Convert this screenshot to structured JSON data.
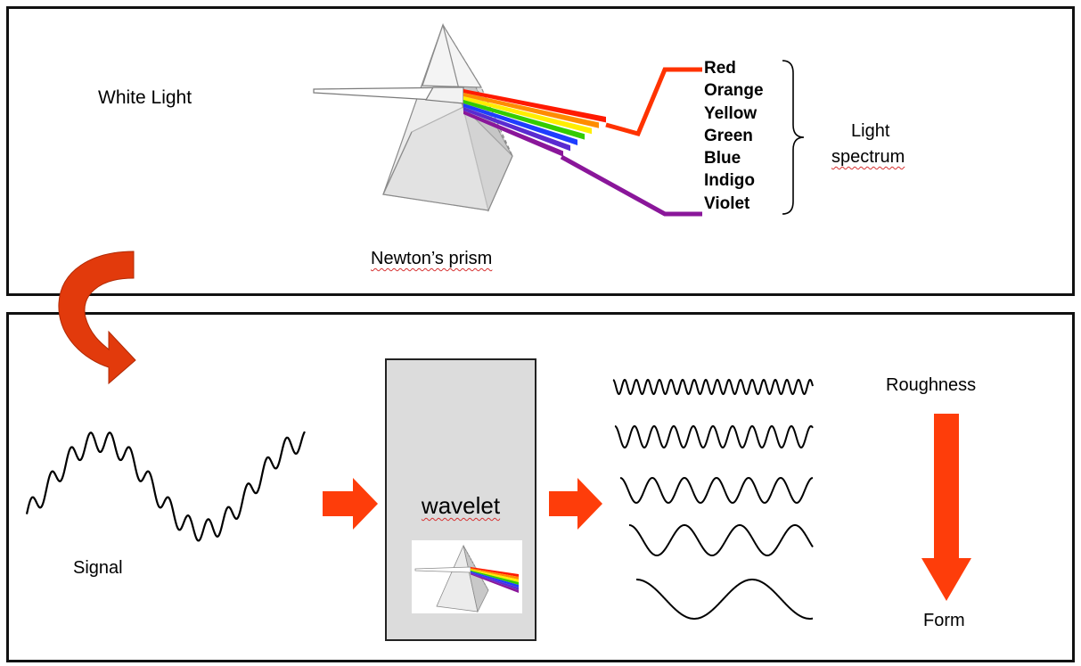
{
  "top": {
    "white_light_label": "White Light",
    "prism_caption": "Newton’s prism",
    "spectrum_colors": [
      "Red",
      "Orange",
      "Yellow",
      "Green",
      "Blue",
      "Indigo",
      "Violet"
    ],
    "spectrum_title_line1": "Light",
    "spectrum_title_line2": "spectrum"
  },
  "bottom": {
    "signal_label": "Signal",
    "wavelet_label": "wavelet",
    "roughness_label": "Roughness",
    "form_label": "Form"
  },
  "colors": {
    "arrow": "#fe3d0a",
    "curved_arrow": "#e23a0c",
    "red_line": "#ff3300",
    "violet_line": "#8a169a",
    "rainbow": [
      "#ff1a00",
      "#ff8c00",
      "#ffee00",
      "#33cc00",
      "#1f3dff",
      "#5a2bd0",
      "#8a169a"
    ]
  }
}
